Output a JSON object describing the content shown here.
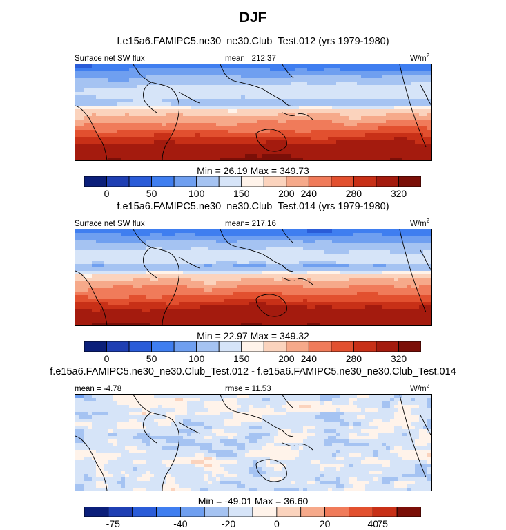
{
  "figure": {
    "season": "DJF",
    "colors": {
      "flux_scale": [
        "#0b1f7a",
        "#1f3fb3",
        "#2a5cd8",
        "#3f7ef0",
        "#6f9ff0",
        "#a5c3f2",
        "#d6e4f8",
        "#fff3ea",
        "#fbd3bd",
        "#f6a98a",
        "#f07b5a",
        "#e2502f",
        "#c83017",
        "#a41b0e",
        "#7b0f08"
      ],
      "diff_scale": [
        "#0b1f7a",
        "#1f3fb3",
        "#2a5cd8",
        "#3f7ef0",
        "#6f9ff0",
        "#a5c3f2",
        "#d6e4f8",
        "#fff3ea",
        "#fbd3bd",
        "#f6a98a",
        "#f07b5a",
        "#e2502f",
        "#c83017",
        "#7b0f08"
      ]
    }
  },
  "chart_data": [
    {
      "type": "heatmap",
      "title": "f.e15a6.FAMIPC5.ne30_ne30.Club_Test.012 (yrs 1979-1980)",
      "left_label": "Surface net SW flux",
      "center_label": "mean= 212.37",
      "units": "W/m",
      "units_exp": "2",
      "minmax": "Min =  26.19 Max = 349.73",
      "colorbar_ticks": [
        "0",
        "50",
        "100",
        "150",
        "200",
        "240",
        "280",
        "320"
      ],
      "mean": 212.37,
      "min": 26.19,
      "max": 349.73
    },
    {
      "type": "heatmap",
      "title": "f.e15a6.FAMIPC5.ne30_ne30.Club_Test.014 (yrs 1979-1980)",
      "left_label": "Surface net SW flux",
      "center_label": "mean= 217.16",
      "units": "W/m",
      "units_exp": "2",
      "minmax": "Min =  22.97 Max = 349.32",
      "colorbar_ticks": [
        "0",
        "50",
        "100",
        "150",
        "200",
        "240",
        "280",
        "320"
      ],
      "mean": 217.16,
      "min": 22.97,
      "max": 349.32
    },
    {
      "type": "heatmap",
      "title": "f.e15a6.FAMIPC5.ne30_ne30.Club_Test.012 - f.e15a6.FAMIPC5.ne30_ne30.Club_Test.014",
      "left_label": "mean =  -4.78",
      "center_label": "rmse =  11.53",
      "units": "W/m",
      "units_exp": "2",
      "minmax": "Min = -49.01 Max =  36.60",
      "colorbar_ticks": [
        "-75",
        "-40",
        "-20",
        "0",
        "20",
        "40",
        "75"
      ],
      "mean": -4.78,
      "rmse": 11.53,
      "min": -49.01,
      "max": 36.6
    }
  ]
}
